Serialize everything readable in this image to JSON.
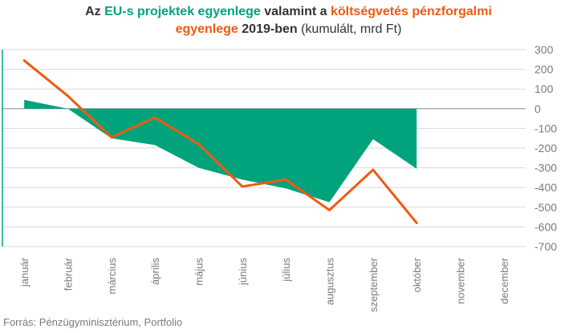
{
  "title": {
    "line1_a": "Az ",
    "line1_b": "EU-s projektek egyenlege",
    "line1_c": " valamint a ",
    "line1_d": "költségvetés pénzforgalmi",
    "line2_a": "egyenlege",
    "line2_b": " 2019-ben",
    "line2_c": " (kumulált, mrd Ft)"
  },
  "source": "Forrás: Pénzügyminisztérium, Portfolio",
  "colors": {
    "eu": "#00a37c",
    "budget": "#f05a10",
    "grid": "#d9d9d9",
    "zero": "#888888",
    "text": "#7a7a7a"
  },
  "chart_data": {
    "type": "area",
    "categories": [
      "január",
      "február",
      "március",
      "április",
      "május",
      "június",
      "július",
      "augusztus",
      "szeptember",
      "október",
      "november",
      "december"
    ],
    "ylim": [
      -700,
      300
    ],
    "yticks": [
      300,
      200,
      100,
      0,
      -100,
      -200,
      -300,
      -400,
      -500,
      -600,
      -700
    ],
    "ytick_labels": [
      "300",
      "200",
      "100",
      "0",
      "-100",
      "-200",
      "-300",
      "-400",
      "-500",
      "-600",
      "-700"
    ],
    "grid": true,
    "series": [
      {
        "name": "EU-s projektek egyenlege",
        "type": "area",
        "values": [
          45,
          0,
          -150,
          -185,
          -300,
          -360,
          -405,
          -475,
          -155,
          -305,
          null,
          null
        ]
      },
      {
        "name": "költségvetés pénzforgalmi egyenlege",
        "type": "line",
        "values": [
          245,
          65,
          -145,
          -45,
          -180,
          -395,
          -360,
          -515,
          -310,
          -580,
          null,
          null
        ]
      }
    ]
  }
}
